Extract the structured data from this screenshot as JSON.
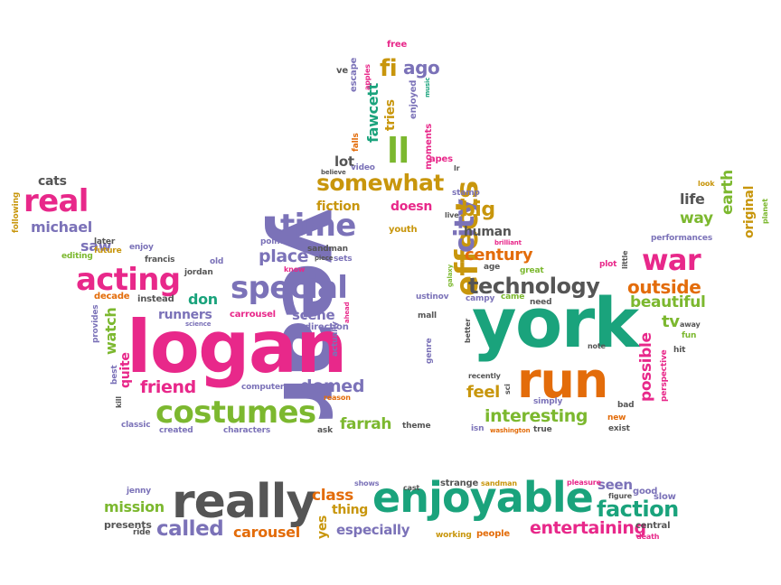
{
  "words": [
    {
      "text": "year",
      "color": "#7b72b8"
    },
    {
      "text": "logan",
      "color": "#e8288a"
    },
    {
      "text": "york",
      "color": "#1aa37c"
    },
    {
      "text": "run",
      "color": "#e36c0a"
    },
    {
      "text": "really",
      "color": "#555555"
    },
    {
      "text": "enjoyable",
      "color": "#1aa37c"
    },
    {
      "text": "costumes",
      "color": "#7cb82f"
    },
    {
      "text": "special",
      "color": "#7b72b8"
    },
    {
      "text": "effects",
      "color": "#c8960c"
    },
    {
      "text": "acting",
      "color": "#e8288a"
    },
    {
      "text": "real",
      "color": "#e8288a"
    },
    {
      "text": "time",
      "color": "#7b72b8"
    },
    {
      "text": "war",
      "color": "#e8288a"
    },
    {
      "text": "technology",
      "color": "#555555"
    },
    {
      "text": "somewhat",
      "color": "#c8960c"
    },
    {
      "text": "city",
      "color": "#7b72b8"
    },
    {
      "text": "ll",
      "color": "#7cb82f"
    },
    {
      "text": "fi",
      "color": "#c8960c"
    },
    {
      "text": "ago",
      "color": "#7b72b8"
    },
    {
      "text": "faction",
      "color": "#1aa37c"
    },
    {
      "text": "entertaining",
      "color": "#e8288a"
    },
    {
      "text": "called",
      "color": "#7b72b8"
    },
    {
      "text": "carousel",
      "color": "#e36c0a"
    },
    {
      "text": "mission",
      "color": "#7cb82f"
    },
    {
      "text": "interesting",
      "color": "#7cb82f"
    },
    {
      "text": "domed",
      "color": "#7b72b8"
    },
    {
      "text": "friend",
      "color": "#e8288a"
    },
    {
      "text": "farrah",
      "color": "#7cb82f"
    },
    {
      "text": "place",
      "color": "#7b72b8"
    },
    {
      "text": "outside",
      "color": "#e36c0a"
    },
    {
      "text": "beautiful",
      "color": "#7cb82f"
    },
    {
      "text": "century",
      "color": "#e36c0a"
    },
    {
      "text": "human",
      "color": "#555555"
    },
    {
      "text": "big",
      "color": "#c8960c"
    },
    {
      "text": "earth",
      "color": "#7cb82f"
    },
    {
      "text": "way",
      "color": "#7cb82f"
    },
    {
      "text": "life",
      "color": "#555555"
    },
    {
      "text": "original",
      "color": "#c8960c"
    },
    {
      "text": "michael",
      "color": "#7b72b8"
    },
    {
      "text": "cats",
      "color": "#555555"
    },
    {
      "text": "saw",
      "color": "#7b72b8"
    },
    {
      "text": "fawcett",
      "color": "#1aa37c"
    },
    {
      "text": "tries",
      "color": "#c8960c"
    },
    {
      "text": "doesn",
      "color": "#e8288a"
    },
    {
      "text": "fiction",
      "color": "#c8960c"
    },
    {
      "text": "lot",
      "color": "#555555"
    },
    {
      "text": "scene",
      "color": "#7b72b8"
    },
    {
      "text": "runners",
      "color": "#7b72b8"
    },
    {
      "text": "don",
      "color": "#1aa37c"
    },
    {
      "text": "watch",
      "color": "#7cb82f"
    },
    {
      "text": "quite",
      "color": "#e8288a"
    },
    {
      "text": "feel",
      "color": "#c8960c"
    },
    {
      "text": "possible",
      "color": "#e8288a"
    },
    {
      "text": "tv",
      "color": "#7cb82f"
    },
    {
      "text": "class",
      "color": "#e36c0a"
    },
    {
      "text": "thing",
      "color": "#c8960c"
    },
    {
      "text": "especially",
      "color": "#7b72b8"
    },
    {
      "text": "seen",
      "color": "#7b72b8"
    },
    {
      "text": "yes",
      "color": "#c8960c"
    },
    {
      "text": "presents",
      "color": "#555555"
    },
    {
      "text": "jenny",
      "color": "#7b72b8"
    },
    {
      "text": "ride",
      "color": "#555555"
    },
    {
      "text": "shows",
      "color": "#7b72b8"
    },
    {
      "text": "cast",
      "color": "#555555"
    },
    {
      "text": "strange",
      "color": "#555555"
    },
    {
      "text": "sandman",
      "color": "#c8960c"
    },
    {
      "text": "pleasure",
      "color": "#e8288a"
    },
    {
      "text": "good",
      "color": "#7b72b8"
    },
    {
      "text": "slow",
      "color": "#7b72b8"
    },
    {
      "text": "figure",
      "color": "#555555"
    },
    {
      "text": "central",
      "color": "#555555"
    },
    {
      "text": "death",
      "color": "#e8288a"
    },
    {
      "text": "working",
      "color": "#c8960c"
    },
    {
      "text": "people",
      "color": "#e36c0a"
    },
    {
      "text": "free",
      "color": "#e8288a"
    },
    {
      "text": "ve",
      "color": "#555555"
    },
    {
      "text": "escape",
      "color": "#7b72b8"
    },
    {
      "text": "apples",
      "color": "#e8288a"
    },
    {
      "text": "enjoyed",
      "color": "#7b72b8"
    },
    {
      "text": "music",
      "color": "#1aa37c"
    },
    {
      "text": "falls",
      "color": "#e36c0a"
    },
    {
      "text": "moments",
      "color": "#e8288a"
    },
    {
      "text": "apes",
      "color": "#e8288a"
    },
    {
      "text": "believe",
      "color": "#555555"
    },
    {
      "text": "video",
      "color": "#7b72b8"
    },
    {
      "text": "stamp",
      "color": "#7b72b8"
    },
    {
      "text": "lr",
      "color": "#555555"
    },
    {
      "text": "following",
      "color": "#c8960c"
    },
    {
      "text": "editing",
      "color": "#7cb82f"
    },
    {
      "text": "later",
      "color": "#555555"
    },
    {
      "text": "future",
      "color": "#c8960c"
    },
    {
      "text": "enjoy",
      "color": "#7b72b8"
    },
    {
      "text": "francis",
      "color": "#555555"
    },
    {
      "text": "jordan",
      "color": "#555555"
    },
    {
      "text": "old",
      "color": "#7b72b8"
    },
    {
      "text": "point",
      "color": "#7b72b8"
    },
    {
      "text": "sandman",
      "color": "#555555"
    },
    {
      "text": "know",
      "color": "#e8288a"
    },
    {
      "text": "piece",
      "color": "#555555"
    },
    {
      "text": "sets",
      "color": "#7b72b8"
    },
    {
      "text": "youth",
      "color": "#c8960c"
    },
    {
      "text": "live",
      "color": "#555555"
    },
    {
      "text": "brilliant",
      "color": "#e8288a"
    },
    {
      "text": "age",
      "color": "#555555"
    },
    {
      "text": "great",
      "color": "#7cb82f"
    },
    {
      "text": "decade",
      "color": "#e36c0a"
    },
    {
      "text": "instead",
      "color": "#555555"
    },
    {
      "text": "provides",
      "color": "#7b72b8"
    },
    {
      "text": "carrousel",
      "color": "#e8288a"
    },
    {
      "text": "science",
      "color": "#7b72b8"
    },
    {
      "text": "direction",
      "color": "#7b72b8"
    },
    {
      "text": "ahead",
      "color": "#e8288a"
    },
    {
      "text": "actually",
      "color": "#7b72b8"
    },
    {
      "text": "ustinov",
      "color": "#7b72b8"
    },
    {
      "text": "galaxy",
      "color": "#7cb82f"
    },
    {
      "text": "mall",
      "color": "#555555"
    },
    {
      "text": "campy",
      "color": "#7b72b8"
    },
    {
      "text": "came",
      "color": "#7cb82f"
    },
    {
      "text": "need",
      "color": "#555555"
    },
    {
      "text": "plot",
      "color": "#e8288a"
    },
    {
      "text": "little",
      "color": "#555555"
    },
    {
      "text": "performances",
      "color": "#7b72b8"
    },
    {
      "text": "look",
      "color": "#c8960c"
    },
    {
      "text": "planet",
      "color": "#7cb82f"
    },
    {
      "text": "best",
      "color": "#7b72b8"
    },
    {
      "text": "kill",
      "color": "#555555"
    },
    {
      "text": "classic",
      "color": "#7b72b8"
    },
    {
      "text": "created",
      "color": "#7b72b8"
    },
    {
      "text": "computer",
      "color": "#7b72b8"
    },
    {
      "text": "characters",
      "color": "#7b72b8"
    },
    {
      "text": "reason",
      "color": "#e36c0a"
    },
    {
      "text": "ask",
      "color": "#555555"
    },
    {
      "text": "theme",
      "color": "#555555"
    },
    {
      "text": "genre",
      "color": "#7b72b8"
    },
    {
      "text": "better",
      "color": "#555555"
    },
    {
      "text": "recently",
      "color": "#555555"
    },
    {
      "text": "sci",
      "color": "#555555"
    },
    {
      "text": "simply",
      "color": "#7b72b8"
    },
    {
      "text": "isn",
      "color": "#7b72b8"
    },
    {
      "text": "washington",
      "color": "#e36c0a"
    },
    {
      "text": "true",
      "color": "#555555"
    },
    {
      "text": "note",
      "color": "#555555"
    },
    {
      "text": "perspective",
      "color": "#e8288a"
    },
    {
      "text": "bad",
      "color": "#555555"
    },
    {
      "text": "new",
      "color": "#e36c0a"
    },
    {
      "text": "exist",
      "color": "#555555"
    },
    {
      "text": "fun",
      "color": "#7cb82f"
    },
    {
      "text": "away",
      "color": "#555555"
    },
    {
      "text": "hit",
      "color": "#555555"
    }
  ]
}
